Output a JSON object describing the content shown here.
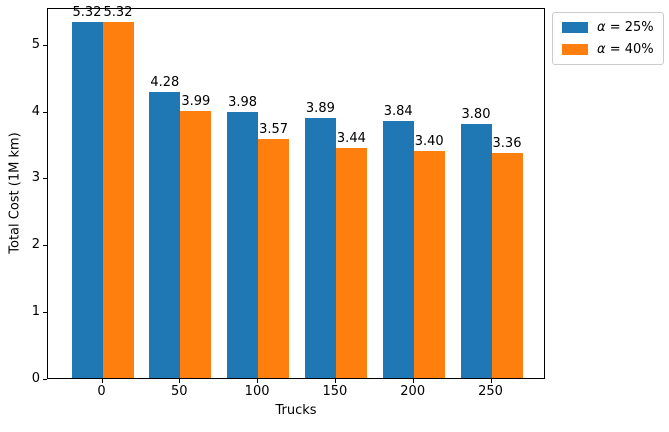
{
  "figure": {
    "background": "#ffffff",
    "text_color": "#000000"
  },
  "chart_data": {
    "type": "bar",
    "title": "",
    "xlabel": "Trucks",
    "ylabel": "Total Cost (1M km)",
    "categories": [
      "0",
      "50",
      "100",
      "150",
      "200",
      "250"
    ],
    "series": [
      {
        "name": "α = 25%",
        "color": "#1f77b4",
        "values": [
          5.32,
          4.28,
          3.98,
          3.89,
          3.84,
          3.8
        ],
        "labels": [
          "5.32",
          "4.28",
          "3.98",
          "3.89",
          "3.84",
          "3.80"
        ]
      },
      {
        "name": "α = 40%",
        "color": "#ff7f0e",
        "values": [
          5.32,
          3.99,
          3.57,
          3.44,
          3.4,
          3.36
        ],
        "labels": [
          "5.32",
          "3.99",
          "3.57",
          "3.44",
          "3.40",
          "3.36"
        ]
      }
    ],
    "yticks": [
      "0",
      "1",
      "2",
      "3",
      "4",
      "5"
    ],
    "ylim": [
      0,
      5.55
    ],
    "grid": false,
    "legend": {
      "position": "upper-right-outside",
      "entries": [
        "α = 25%",
        "α = 40%"
      ]
    }
  }
}
